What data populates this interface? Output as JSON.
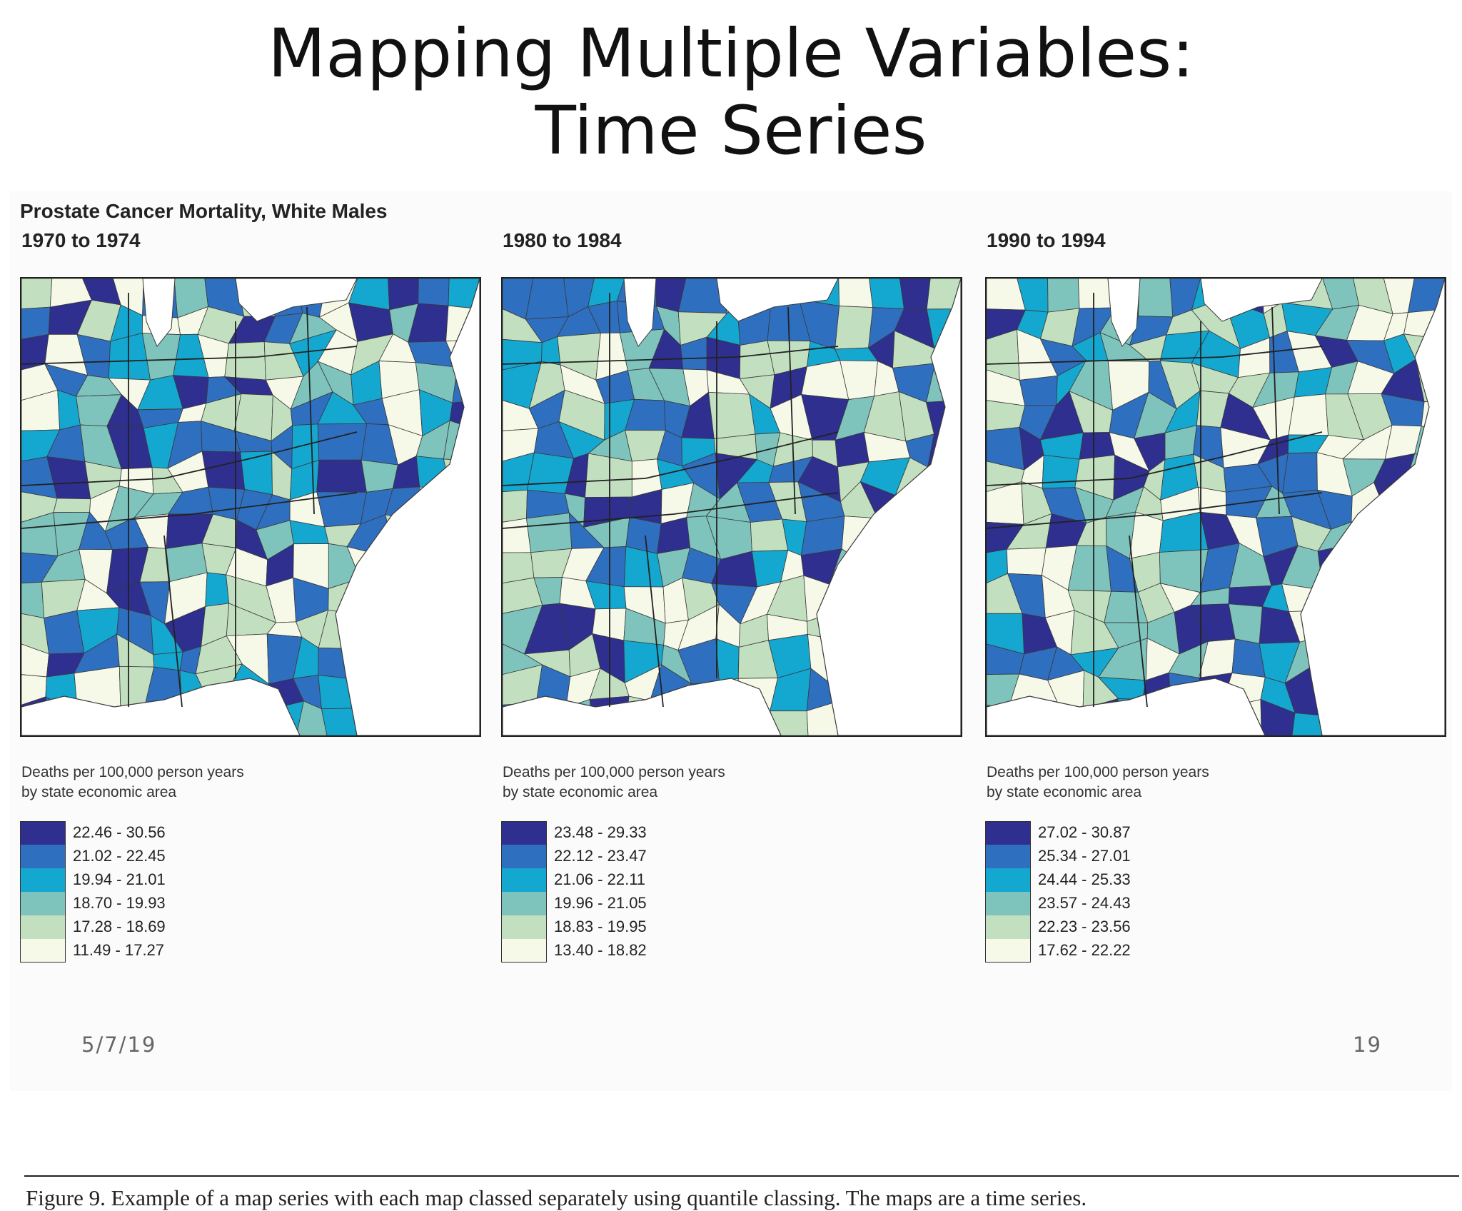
{
  "slide": {
    "title_line1": "Mapping Multiple Variables:",
    "title_line2": "Time Series",
    "date": "5/7/19",
    "page_number": "19"
  },
  "figure": {
    "heading": "Prostate Cancer Mortality, White Males",
    "caption": "Figure 9.  Example of a map series with each map classed separately using quantile classing. The maps are a time series.",
    "class_colors": [
      "#2e2f8f",
      "#2f6fbf",
      "#14a7cf",
      "#7ec4bc",
      "#c2e0c0",
      "#f6f8e8"
    ],
    "panels": [
      {
        "period": "1970 to 1974",
        "units_line1": "Deaths per 100,000 person years",
        "units_line2": "by state economic area",
        "legend": [
          "22.46 - 30.56",
          "21.02 - 22.45",
          "19.94 - 21.01",
          "18.70 - 19.93",
          "17.28 - 18.69",
          "11.49 - 17.27"
        ]
      },
      {
        "period": "1980 to 1984",
        "units_line1": "Deaths per 100,000 person years",
        "units_line2": "by state economic area",
        "legend": [
          "23.48 - 29.33",
          "22.12 - 23.47",
          "21.06 - 22.11",
          "19.96 - 21.05",
          "18.83 - 19.95",
          "13.40 - 18.82"
        ]
      },
      {
        "period": "1990 to 1994",
        "units_line1": "Deaths per 100,000 person years",
        "units_line2": "by state economic area",
        "legend": [
          "27.02 - 30.87",
          "25.34 - 27.01",
          "24.44 - 25.33",
          "23.57 - 24.43",
          "22.23 - 23.56",
          "17.62 - 22.22"
        ]
      }
    ]
  }
}
